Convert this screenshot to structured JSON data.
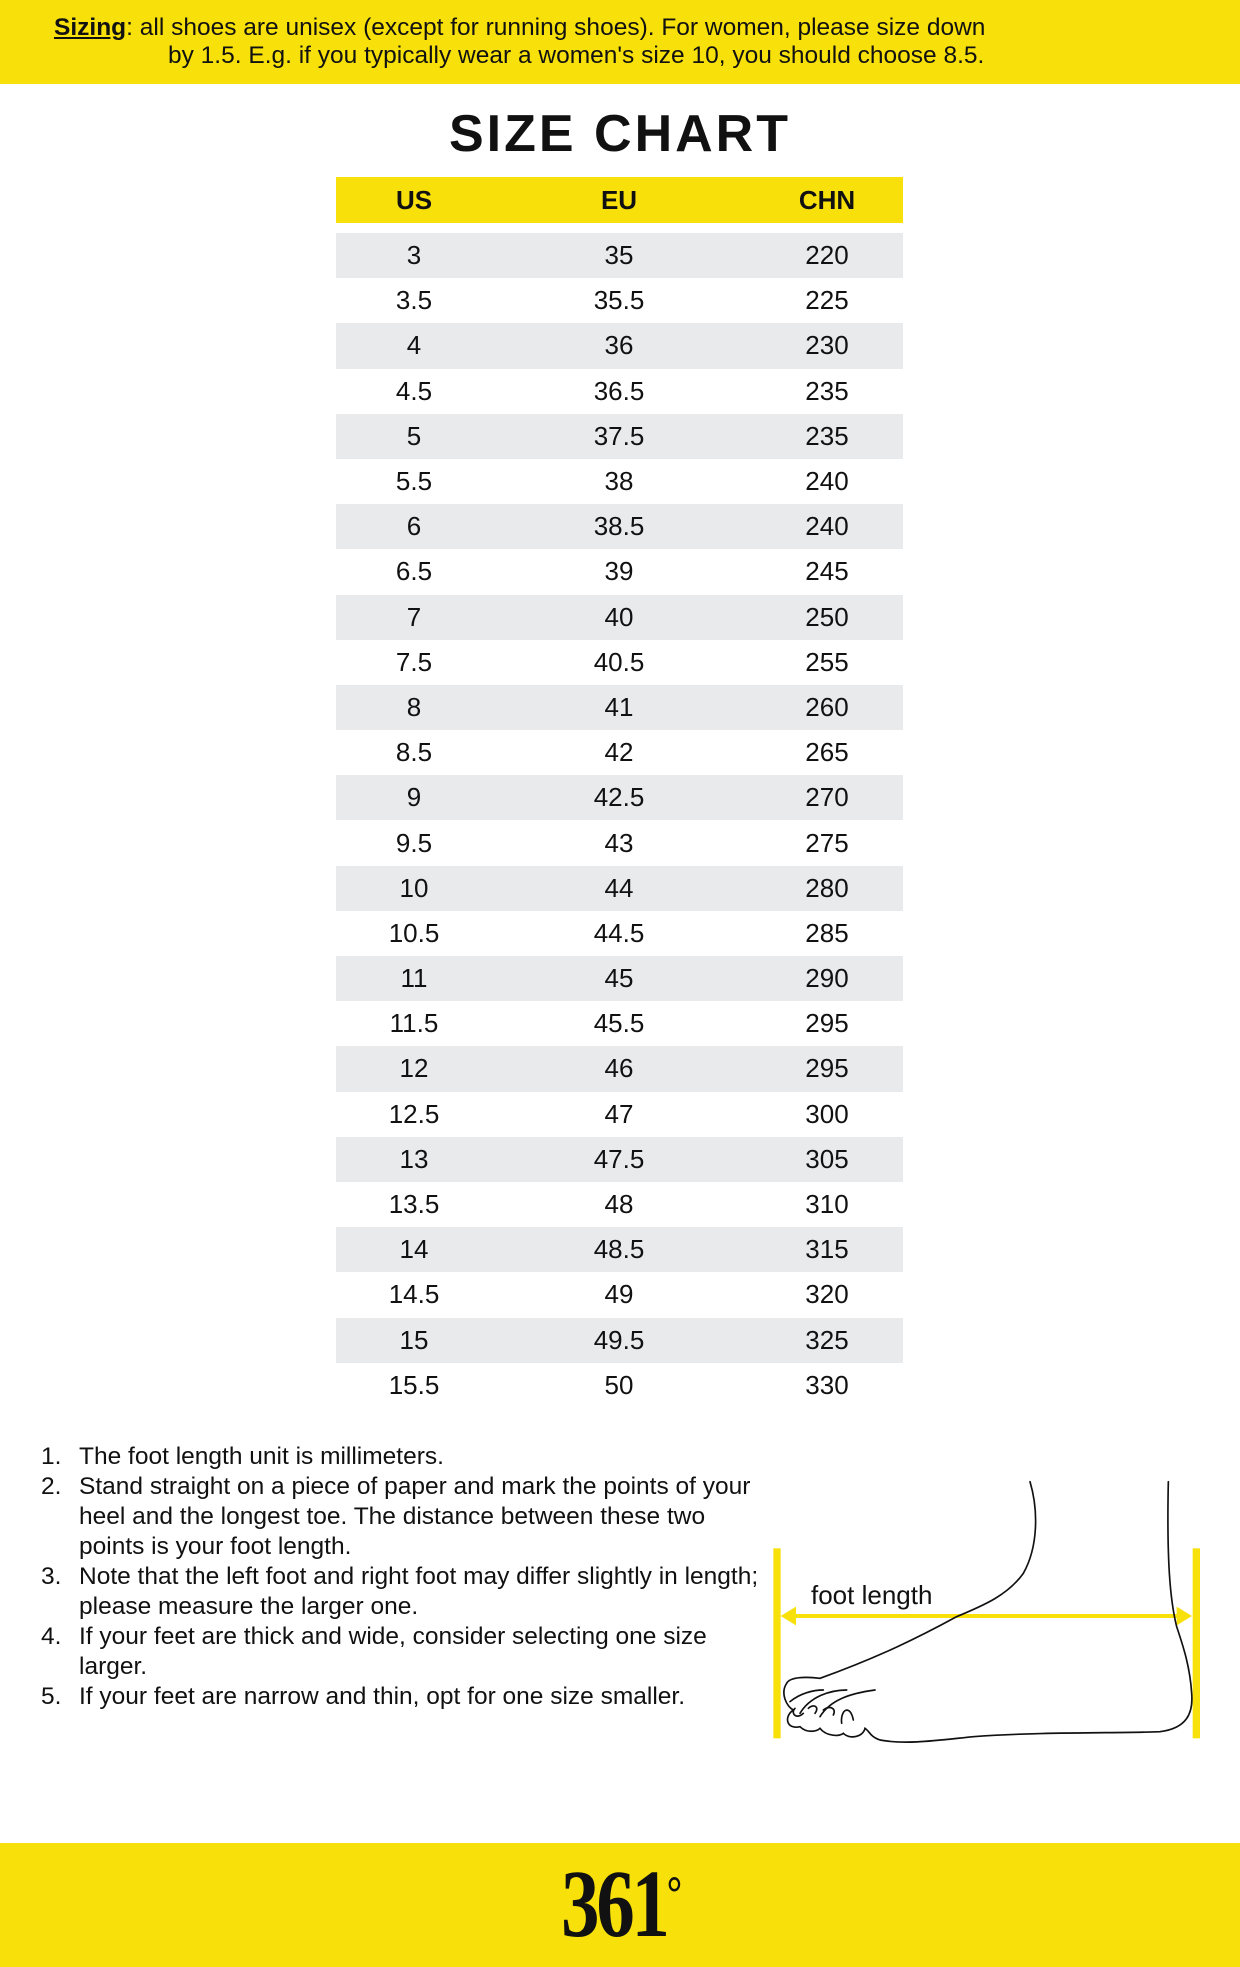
{
  "banner": {
    "label": "Sizing",
    "line1": ": all shoes are unisex (except for running shoes). For women, please size down",
    "line2": "by 1.5. E.g. if you typically wear a women's size 10, you should choose 8.5."
  },
  "title": "SIZE CHART",
  "table": {
    "headers": [
      "US",
      "EU",
      "CHN"
    ],
    "rows": [
      [
        "3",
        "35",
        "220"
      ],
      [
        "3.5",
        "35.5",
        "225"
      ],
      [
        "4",
        "36",
        "230"
      ],
      [
        "4.5",
        "36.5",
        "235"
      ],
      [
        "5",
        "37.5",
        "235"
      ],
      [
        "5.5",
        "38",
        "240"
      ],
      [
        "6",
        "38.5",
        "240"
      ],
      [
        "6.5",
        "39",
        "245"
      ],
      [
        "7",
        "40",
        "250"
      ],
      [
        "7.5",
        "40.5",
        "255"
      ],
      [
        "8",
        "41",
        "260"
      ],
      [
        "8.5",
        "42",
        "265"
      ],
      [
        "9",
        "42.5",
        "270"
      ],
      [
        "9.5",
        "43",
        "275"
      ],
      [
        "10",
        "44",
        "280"
      ],
      [
        "10.5",
        "44.5",
        "285"
      ],
      [
        "11",
        "45",
        "290"
      ],
      [
        "11.5",
        "45.5",
        "295"
      ],
      [
        "12",
        "46",
        "295"
      ],
      [
        "12.5",
        "47",
        "300"
      ],
      [
        "13",
        "47.5",
        "305"
      ],
      [
        "13.5",
        "48",
        "310"
      ],
      [
        "14",
        "48.5",
        "315"
      ],
      [
        "14.5",
        "49",
        "320"
      ],
      [
        "15",
        "49.5",
        "325"
      ],
      [
        "15.5",
        "50",
        "330"
      ]
    ]
  },
  "notes": [
    {
      "n": "1.",
      "text": "The foot length unit is millimeters."
    },
    {
      "n": "2.",
      "text": "Stand straight on a piece of paper and mark the points of your heel and the longest toe. The distance between these two points is your foot length."
    },
    {
      "n": "3.",
      "text": "Note that the left foot and right foot may differ slightly in length; please measure the larger one."
    },
    {
      "n": "4.",
      "text": "If your feet are thick and wide, consider selecting one size larger."
    },
    {
      "n": "5.",
      "text": "If your feet are narrow and thin, opt for one size smaller."
    }
  ],
  "diagram": {
    "label": "foot length",
    "icon": "foot-measure-illustration"
  },
  "footer": {
    "logo_text": "361",
    "logo_degree": "°"
  },
  "colors": {
    "accent": "#f8e10a",
    "row_alt": "#e9eaec"
  }
}
